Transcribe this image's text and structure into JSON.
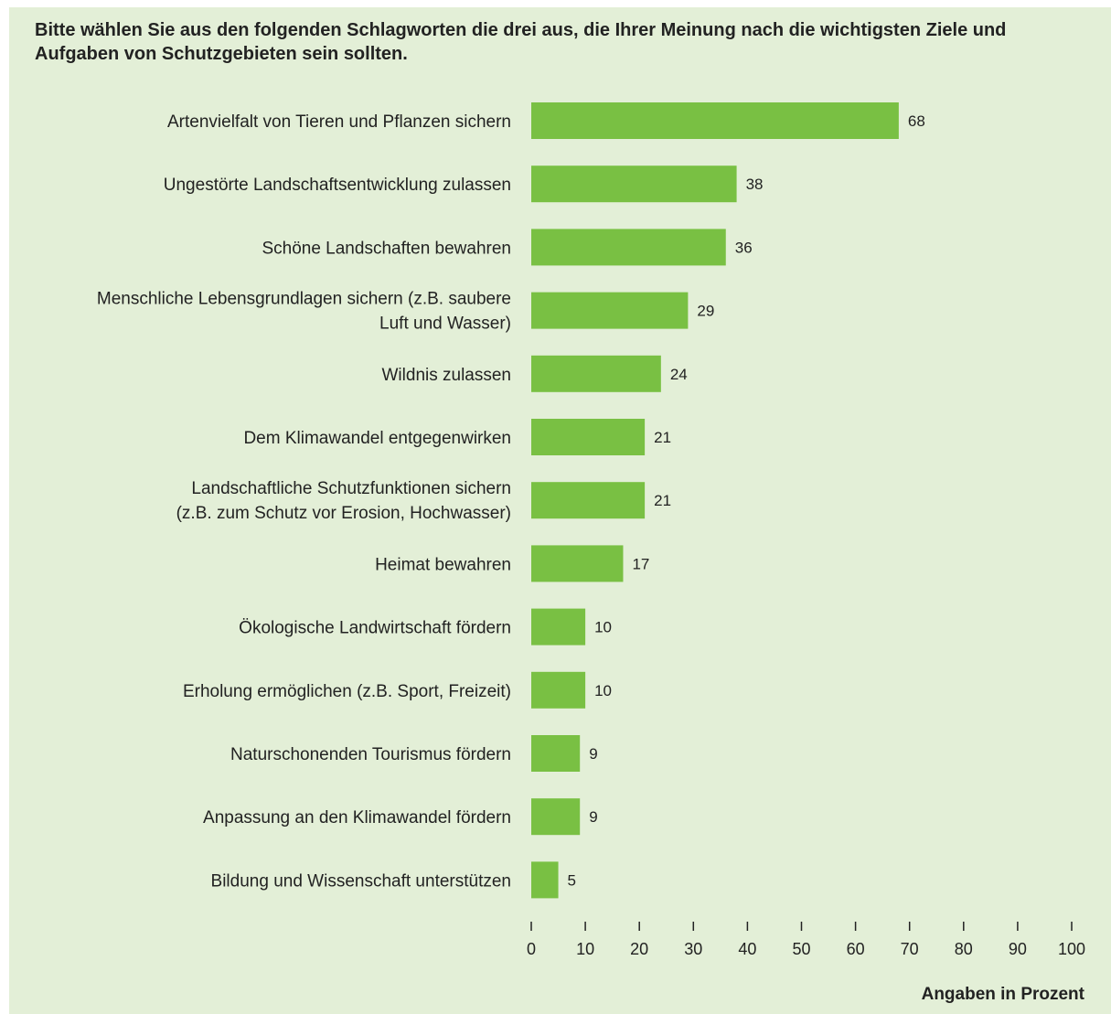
{
  "colors": {
    "background": "#e3efd7",
    "bar": "#79c043",
    "text": "#222222"
  },
  "chart_data": {
    "type": "bar",
    "orientation": "horizontal",
    "title": "Bitte wählen Sie aus den folgenden Schlagworten die drei aus, die Ihrer Meinung nach die wichtigsten Ziele und Aufgaben von Schutzgebieten sein sollten.",
    "categories": [
      [
        "Artenvielfalt von Tieren und Pflanzen sichern"
      ],
      [
        "Ungestörte Landschaftsentwicklung zulassen"
      ],
      [
        "Schöne Landschaften bewahren"
      ],
      [
        "Menschliche Lebensgrundlagen sichern (z.B. saubere",
        "Luft und Wasser)"
      ],
      [
        "Wildnis zulassen"
      ],
      [
        "Dem Klimawandel entgegenwirken"
      ],
      [
        "Landschaftliche Schutzfunktionen sichern",
        "(z.B. zum Schutz vor Erosion, Hochwasser)"
      ],
      [
        "Heimat bewahren"
      ],
      [
        "Ökologische Landwirtschaft fördern"
      ],
      [
        "Erholung ermöglichen (z.B. Sport, Freizeit)"
      ],
      [
        "Naturschonenden Tourismus fördern"
      ],
      [
        "Anpassung an den Klimawandel fördern"
      ],
      [
        "Bildung und Wissenschaft unterstützen"
      ]
    ],
    "values": [
      68,
      38,
      36,
      29,
      24,
      21,
      21,
      17,
      10,
      10,
      9,
      9,
      5
    ],
    "xlim": [
      0,
      100
    ],
    "xticks": [
      0,
      10,
      20,
      30,
      40,
      50,
      60,
      70,
      80,
      90,
      100
    ],
    "xlabel": "Angaben in Prozent",
    "grid": false,
    "legend": "none"
  }
}
